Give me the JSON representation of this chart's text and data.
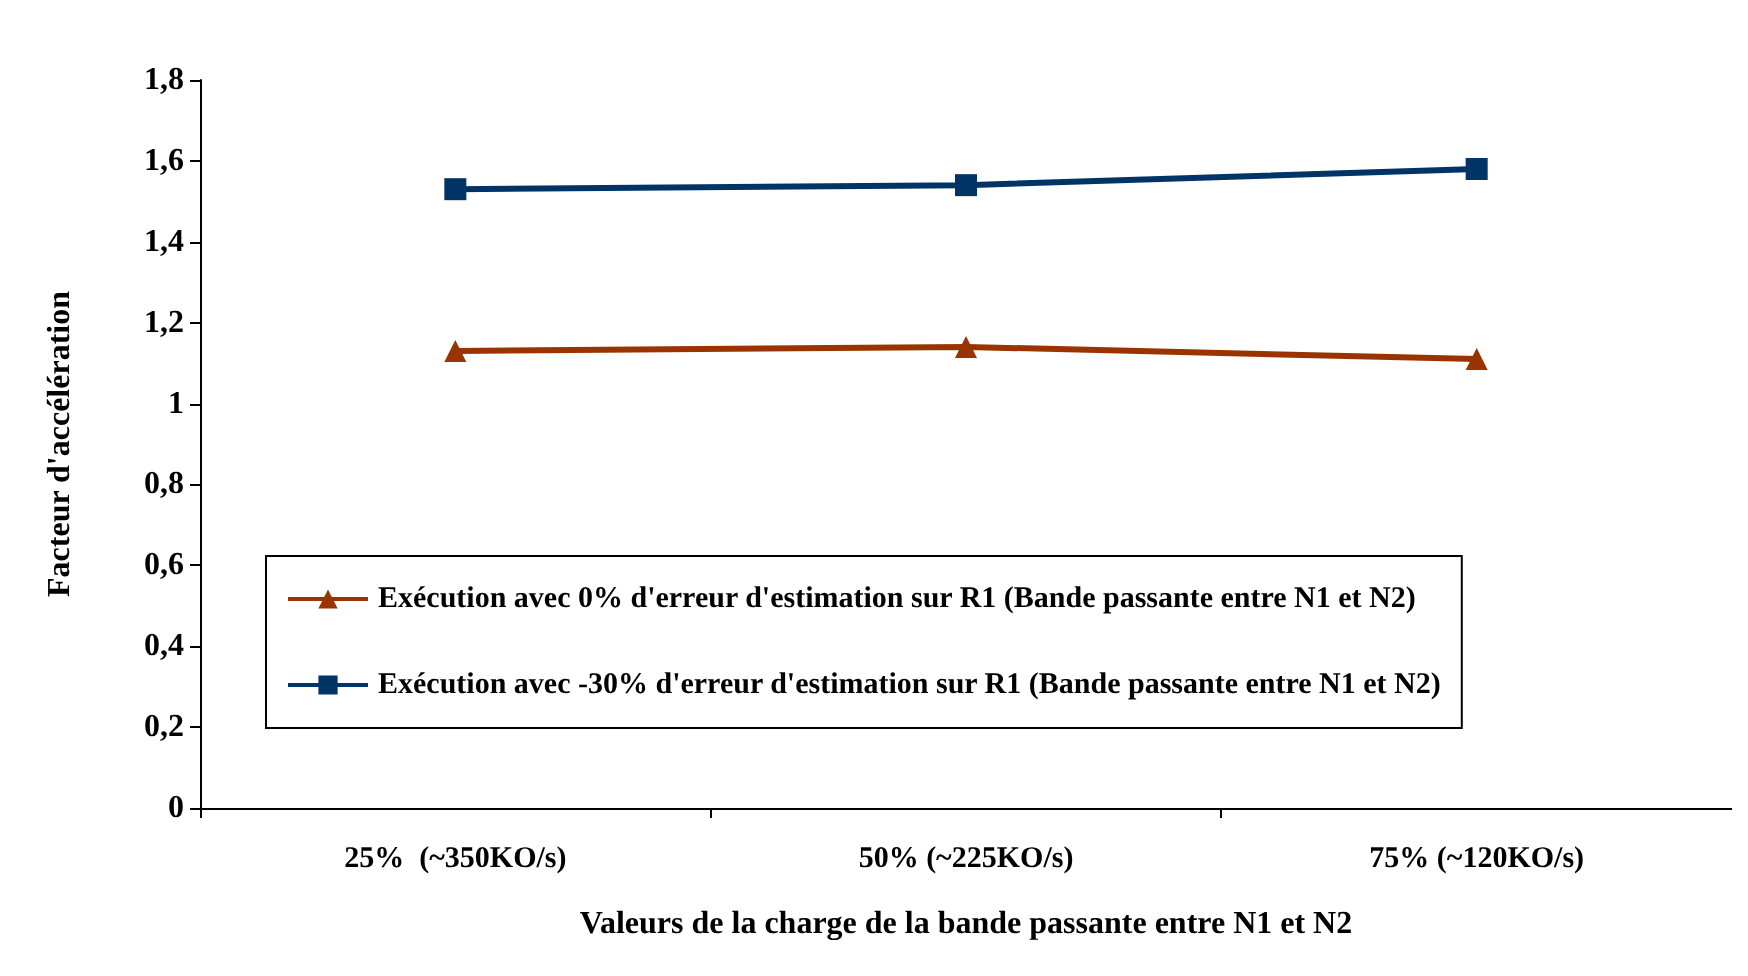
{
  "chart_data": {
    "type": "line",
    "xlabel": "Valeurs de la charge de la bande passante entre N1 et N2",
    "ylabel": "Facteur d'accélération",
    "categories": [
      "25%  (~350KO/s)",
      "50% (~225KO/s)",
      "75% (~120KO/s)"
    ],
    "series": [
      {
        "name": "Exécution avec 0% d'erreur d'estimation sur R1 (Bande passante entre N1 et N2)",
        "color": "#993300",
        "marker": "triangle",
        "values": [
          1.13,
          1.14,
          1.11
        ]
      },
      {
        "name": "Exécution avec -30% d'erreur d'estimation sur R1 (Bande passante entre N1 et N2)",
        "color": "#003366",
        "marker": "square",
        "values": [
          1.53,
          1.54,
          1.58
        ]
      }
    ],
    "ylim": [
      0,
      1.8
    ],
    "yticks": [
      0,
      {
        "value": 0.2,
        "label": "0,2"
      },
      {
        "value": 0.4,
        "label": "0,4"
      },
      {
        "value": 0.6,
        "label": "0,6"
      },
      {
        "value": 0.8,
        "label": "0,8"
      },
      1,
      {
        "value": 1.2,
        "label": "1,2"
      },
      {
        "value": 1.4,
        "label": "1,4"
      },
      {
        "value": 1.6,
        "label": "1,6"
      },
      {
        "value": 1.8,
        "label": "1,8"
      }
    ],
    "grid": false,
    "legend": "bottom"
  }
}
